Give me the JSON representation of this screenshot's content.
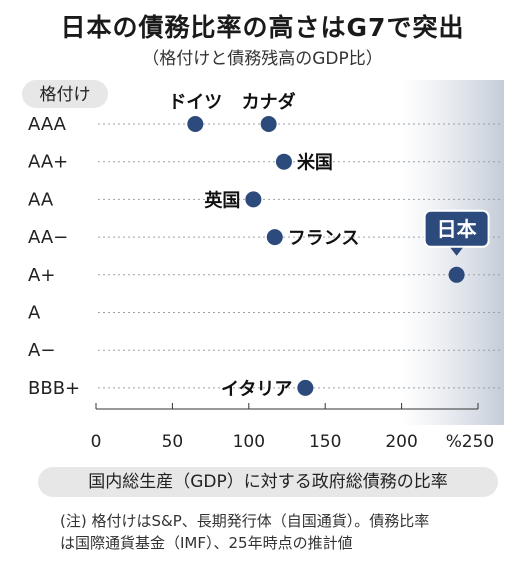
{
  "title": "日本の債務比率の高さはG7で突出",
  "subtitle": "（格付けと債務残高のGDP比）",
  "note": "(注) 格付けはS&P、長期発行体（自国通貨）。債務比率\nは国際通貨基金（IMF）、25年時点の推計値",
  "chart_data": {
    "type": "scatter",
    "title": "日本の債務比率の高さはG7で突出",
    "subtitle": "（格付けと債務残高のGDP比）",
    "xlabel": "国内総生産（GDP）に対する政府総債務の比率",
    "ylabel": "格付け",
    "x_unit": "%",
    "xlim": [
      0,
      250
    ],
    "x_ticks": [
      "0",
      "50",
      "100",
      "150",
      "200",
      "250"
    ],
    "y_categories": [
      "AAA",
      "AA+",
      "AA",
      "AA−",
      "A+",
      "A",
      "A−",
      "BBB+"
    ],
    "grid": true,
    "point_color": "#2c4a7c",
    "points": [
      {
        "label": "ドイツ",
        "x": 65,
        "y": "AAA",
        "label_pos": "above"
      },
      {
        "label": "カナダ",
        "x": 113,
        "y": "AAA",
        "label_pos": "above"
      },
      {
        "label": "米国",
        "x": 123,
        "y": "AA+",
        "label_pos": "right"
      },
      {
        "label": "英国",
        "x": 103,
        "y": "AA",
        "label_pos": "left"
      },
      {
        "label": "フランス",
        "x": 117,
        "y": "AA−",
        "label_pos": "right"
      },
      {
        "label": "日本",
        "x": 236,
        "y": "A+",
        "label_pos": "callout"
      },
      {
        "label": "イタリア",
        "x": 137,
        "y": "BBB+",
        "label_pos": "left"
      }
    ]
  }
}
